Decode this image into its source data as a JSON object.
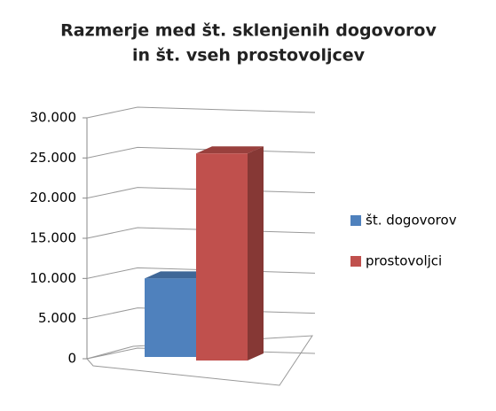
{
  "chart_data": {
    "type": "bar3d",
    "title": [
      "Razmerje med št. sklenjenih dogovorov",
      "in št. vseh prostovoljcev"
    ],
    "categories": [
      null
    ],
    "series": [
      {
        "name": "št. dogovorov",
        "color": "#4f81bd",
        "values": [
          10000
        ]
      },
      {
        "name": "prostovoljci",
        "color": "#c0504d",
        "values": [
          26000
        ]
      }
    ],
    "ylim": [
      0,
      30000
    ],
    "yticks": [
      0,
      {
        "value": 5000,
        "label": "5.000"
      },
      {
        "value": 10000,
        "label": "10.000"
      },
      {
        "value": 15000,
        "label": "15.000"
      },
      {
        "value": 20000,
        "label": "20.000"
      },
      {
        "value": 25000,
        "label": "25.000"
      },
      {
        "value": 30000,
        "label": "30.000"
      }
    ],
    "grid": true,
    "legend": "right"
  }
}
